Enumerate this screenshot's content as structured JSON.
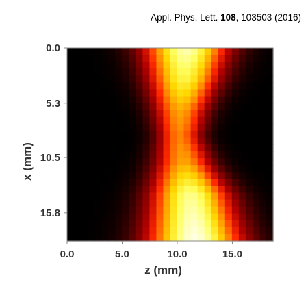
{
  "citation": {
    "journal": "Appl. Phys. Lett. ",
    "volume": "108",
    "pages_year": ", 103503 (2016)"
  },
  "chart_data": {
    "type": "heatmap",
    "title": "",
    "xlabel": "z (mm)",
    "ylabel": "x (mm)",
    "x_ticks": [
      0.0,
      5.0,
      10.0,
      15.0
    ],
    "x_tick_labels": [
      "0.0",
      "5.0",
      "10.0",
      "15.0"
    ],
    "y_ticks": [
      0.0,
      5.3,
      10.5,
      15.8
    ],
    "y_tick_labels": [
      "0.0",
      "5.3",
      "10.5",
      "15.8"
    ],
    "xlim": [
      0.0,
      18.7
    ],
    "ylim": [
      0.0,
      18.5
    ],
    "y_direction": "down",
    "colormap": "hot",
    "colormap_stops": [
      "#000000",
      "#5a0000",
      "#b00000",
      "#ff2a00",
      "#ff8c00",
      "#ffd800",
      "#ffff60",
      "#ffffe8"
    ],
    "grid": {
      "nx": 30,
      "ny": 28,
      "beam_profile": [
        {
          "x": 0.0,
          "center_z": 10.8,
          "width_z": 2.6,
          "peak": 0.95
        },
        {
          "x": 3.0,
          "center_z": 10.6,
          "width_z": 2.2,
          "peak": 0.82
        },
        {
          "x": 6.0,
          "center_z": 10.3,
          "width_z": 1.7,
          "peak": 0.62
        },
        {
          "x": 8.5,
          "center_z": 10.2,
          "width_z": 1.4,
          "peak": 0.55
        },
        {
          "x": 11.0,
          "center_z": 10.6,
          "width_z": 1.8,
          "peak": 0.62
        },
        {
          "x": 14.0,
          "center_z": 11.2,
          "width_z": 2.4,
          "peak": 0.9
        },
        {
          "x": 18.5,
          "center_z": 11.6,
          "width_z": 2.9,
          "peak": 1.0
        }
      ]
    }
  }
}
